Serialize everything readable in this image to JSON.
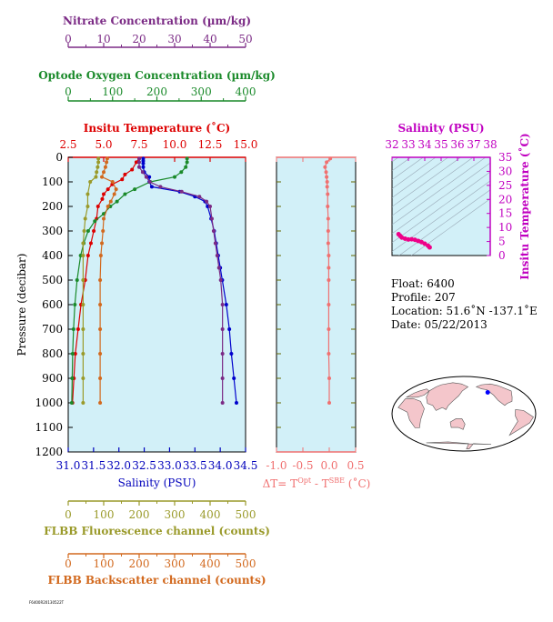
{
  "chart_data": [
    {
      "type": "line",
      "panel": "profile",
      "ylabel": "Pressure (decibar)",
      "y_ticks": [
        0,
        100,
        200,
        300,
        400,
        500,
        600,
        700,
        800,
        900,
        1000,
        1100,
        1200
      ],
      "ylim": [
        1200,
        0
      ],
      "axes": {
        "nitrate": {
          "title": "Nitrate Concentration (µm/kg)",
          "ticks": [
            0,
            10,
            20,
            30,
            40,
            50
          ],
          "range": [
            0,
            50
          ],
          "color": "#7b2a85"
        },
        "oxygen": {
          "title": "Optode Oxygen Concentration (µm/kg)",
          "ticks": [
            0,
            100,
            200,
            300,
            400
          ],
          "range": [
            0,
            400
          ],
          "color": "#1a8a2a"
        },
        "temperature": {
          "title": "Insitu Temperature (˚C)",
          "ticks": [
            "2.5",
            "5.0",
            "7.5",
            "10.0",
            "12.5",
            "15.0"
          ],
          "range": [
            2.5,
            15.0
          ],
          "color": "#dd0000"
        },
        "salinity": {
          "title": "Salinity (PSU)",
          "ticks": [
            "31.0",
            "31.5",
            "32.0",
            "32.5",
            "33.0",
            "33.5",
            "34.0",
            "34.5"
          ],
          "range": [
            31.0,
            34.5
          ],
          "color": "#0000bb"
        },
        "fluorescence": {
          "title": "FLBB Fluorescence channel (counts)",
          "ticks": [
            0,
            100,
            200,
            300,
            400,
            500
          ],
          "range": [
            0,
            500
          ],
          "color": "#9a9a2a"
        },
        "backscatter": {
          "title": "FLBB Backscatter channel (counts)",
          "ticks": [
            0,
            100,
            200,
            300,
            400,
            500
          ],
          "range": [
            0,
            500
          ],
          "color": "#d2691e"
        }
      },
      "series": [
        {
          "axis": "salinity",
          "color": "#0000cc",
          "y": [
            5,
            15,
            25,
            40,
            60,
            80,
            100,
            120,
            140,
            160,
            180,
            200,
            250,
            300,
            350,
            400,
            450,
            500,
            600,
            700,
            800,
            900,
            1000
          ],
          "values": [
            32.48,
            32.48,
            32.48,
            32.48,
            32.5,
            32.6,
            32.6,
            32.65,
            33.2,
            33.5,
            33.7,
            33.75,
            33.82,
            33.88,
            33.92,
            33.96,
            34.0,
            34.04,
            34.12,
            34.18,
            34.22,
            34.27,
            34.32
          ]
        },
        {
          "axis": "temperature",
          "color": "#dd0000",
          "y": [
            5,
            20,
            50,
            70,
            90,
            110,
            130,
            150,
            170,
            200,
            250,
            300,
            350,
            400,
            500,
            600,
            700,
            800,
            900,
            1000
          ],
          "values": [
            7.5,
            7.3,
            7.0,
            6.5,
            6.3,
            5.6,
            5.3,
            5.0,
            4.9,
            4.6,
            4.5,
            4.3,
            4.1,
            3.9,
            3.7,
            3.4,
            3.2,
            3.0,
            2.9,
            2.8
          ]
        },
        {
          "axis": "oxygen",
          "color": "#1a8a2a",
          "y": [
            5,
            20,
            40,
            60,
            80,
            100,
            130,
            150,
            180,
            200,
            230,
            260,
            300,
            350,
            400,
            500,
            600,
            700,
            800,
            900,
            1000
          ],
          "values": [
            268,
            268,
            265,
            255,
            240,
            185,
            150,
            128,
            110,
            95,
            80,
            60,
            45,
            35,
            28,
            20,
            15,
            12,
            10,
            9,
            8
          ]
        },
        {
          "axis": "nitrate",
          "color": "#7b2a85",
          "y": [
            5,
            20,
            40,
            60,
            80,
            100,
            120,
            140,
            160,
            180,
            200,
            250,
            300,
            350,
            400,
            450,
            500,
            600,
            700,
            800,
            900,
            1000
          ],
          "values": [
            20,
            20,
            20,
            21,
            22,
            23,
            26,
            32,
            37,
            39,
            40,
            40.5,
            41,
            41.5,
            42,
            42.5,
            43,
            43.5,
            43.5,
            43.5,
            43.5,
            43.5
          ]
        },
        {
          "axis": "fluorescence",
          "color": "#9a9a2a",
          "y": [
            5,
            20,
            40,
            60,
            80,
            100,
            150,
            200,
            250,
            300,
            350,
            400,
            500,
            600,
            700,
            800,
            900,
            1000
          ],
          "values": [
            85,
            85,
            83,
            80,
            78,
            62,
            55,
            55,
            48,
            45,
            42,
            42,
            42,
            42,
            42,
            42,
            42,
            42
          ]
        },
        {
          "axis": "backscatter",
          "color": "#d2691e",
          "y": [
            5,
            20,
            40,
            60,
            80,
            100,
            130,
            150,
            180,
            200,
            250,
            300,
            350,
            400,
            500,
            600,
            700,
            800,
            900,
            1000
          ],
          "values": [
            110,
            108,
            105,
            100,
            95,
            125,
            135,
            130,
            120,
            112,
            100,
            98,
            95,
            92,
            90,
            90,
            90,
            90,
            90,
            90
          ]
        }
      ]
    },
    {
      "type": "line",
      "panel": "delta-t",
      "xlabel": "ΔT= T^Opt - T^SBE (˚C)",
      "x_ticks": [
        "-1.0",
        "-0.5",
        "0.0",
        "0.5"
      ],
      "xlim": [
        -1.0,
        0.5
      ],
      "ylim": [
        1200,
        0
      ],
      "series": [
        {
          "color": "#f07070",
          "y": [
            5,
            20,
            40,
            60,
            80,
            100,
            120,
            150,
            200,
            250,
            300,
            350,
            400,
            450,
            500,
            600,
            700,
            800,
            900,
            1000
          ],
          "values": [
            0.02,
            -0.05,
            -0.08,
            -0.06,
            -0.05,
            -0.04,
            -0.04,
            -0.03,
            -0.03,
            -0.02,
            -0.02,
            -0.02,
            -0.01,
            -0.01,
            -0.01,
            -0.01,
            -0.01,
            -0.01,
            0.0,
            0.0
          ]
        }
      ]
    },
    {
      "type": "scatter",
      "panel": "t-s",
      "xlabel": "Salinity (PSU)",
      "ylabel": "Insitu Temperature (˚C)",
      "x_ticks": [
        "32",
        "33",
        "34",
        "35",
        "36",
        "37",
        "38"
      ],
      "y_ticks": [
        "0",
        "5",
        "10",
        "15",
        "20",
        "25",
        "30",
        "35"
      ],
      "xlim": [
        32,
        38
      ],
      "ylim": [
        0,
        35
      ],
      "color": "#ee0088",
      "x": [
        32.4,
        32.5,
        32.6,
        32.8,
        33.0,
        33.2,
        33.4,
        33.6,
        33.8,
        34.0,
        34.2,
        34.3
      ],
      "y": [
        7.6,
        7.0,
        6.4,
        6.0,
        5.7,
        5.8,
        5.6,
        5.2,
        4.8,
        4.2,
        3.5,
        2.9
      ]
    }
  ],
  "info": {
    "float": "Float:  6400",
    "profile": "Profile:  207",
    "location": "Location:  51.6˚N  -137.1˚E",
    "date": "Date:  05/22/2013"
  },
  "map": {
    "marker_lat": 51.6,
    "marker_lon": -137.1
  },
  "footer_text": "F6400R20130522T"
}
